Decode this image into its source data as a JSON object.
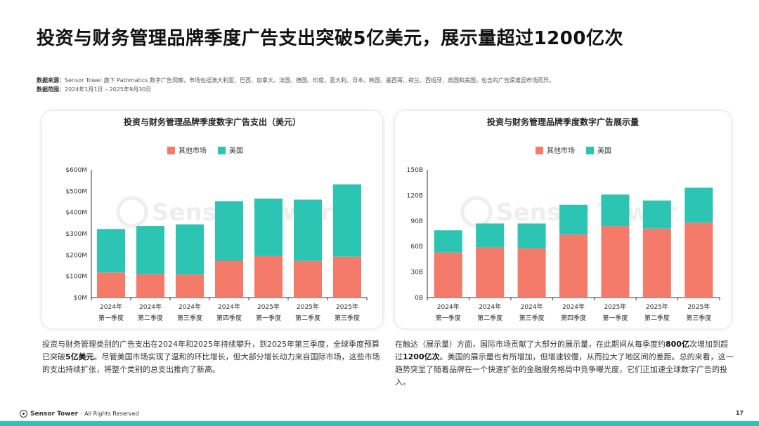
{
  "title": "投资与财务管理品牌季度广告支出突破5亿美元，展示量超过1200亿次",
  "source": {
    "label": "数据来源：",
    "text": "Sensor Tower 旗下 Pathmatics 数字广告洞察，市场包括澳大利亚、巴西、加拿大、法国、德国、印度、意大利、日本、韩国、墨西哥、荷兰、西班牙、英国和美国，包含的广告渠道因市场而异。",
    "range_label": "数据范围：",
    "range_text": "2024年1月1日 – 2025年9月30日"
  },
  "watermark": "Sensor Tower",
  "colors": {
    "other": "#f47a6a",
    "us": "#2cc5b4",
    "accent": "#2cc5b4"
  },
  "chart_data": [
    {
      "type": "bar",
      "stacked": true,
      "title": "投资与财务管理品牌季度数字广告支出（美元）",
      "categories": [
        [
          "2024年",
          "第一季度"
        ],
        [
          "2024年",
          "第二季度"
        ],
        [
          "2024年",
          "第三季度"
        ],
        [
          "2024年",
          "第四季度"
        ],
        [
          "2025年",
          "第一季度"
        ],
        [
          "2025年",
          "第二季度"
        ],
        [
          "2025年",
          "第三季度"
        ]
      ],
      "series": [
        {
          "name": "其他市场",
          "color": "#f47a6a",
          "values": [
            118,
            110,
            108,
            173,
            195,
            172,
            192
          ]
        },
        {
          "name": "美国",
          "color": "#2cc5b4",
          "values": [
            204,
            226,
            236,
            280,
            270,
            288,
            340
          ]
        }
      ],
      "ylim": [
        0,
        600
      ],
      "yticks": [
        0,
        100,
        200,
        300,
        400,
        500,
        600
      ],
      "ytick_labels": [
        "$0M",
        "$100M",
        "$200M",
        "$300M",
        "$400M",
        "$500M",
        "$600M"
      ],
      "legend_position": "top"
    },
    {
      "type": "bar",
      "stacked": true,
      "title": "投资与财务管理品牌季度数字广告展示量",
      "categories": [
        [
          "2024年",
          "第一季度"
        ],
        [
          "2024年",
          "第二季度"
        ],
        [
          "2024年",
          "第三季度"
        ],
        [
          "2024年",
          "第四季度"
        ],
        [
          "2025年",
          "第一季度"
        ],
        [
          "2025年",
          "第二季度"
        ],
        [
          "2025年",
          "第三季度"
        ]
      ],
      "series": [
        {
          "name": "其他市场",
          "color": "#f47a6a",
          "values": [
            53,
            59,
            58,
            74,
            84,
            81,
            88
          ]
        },
        {
          "name": "美国",
          "color": "#2cc5b4",
          "values": [
            26,
            28,
            29,
            35,
            37,
            33,
            41
          ]
        }
      ],
      "ylim": [
        0,
        150
      ],
      "yticks": [
        0,
        30,
        60,
        90,
        120,
        150
      ],
      "ytick_labels": [
        "0B",
        "30B",
        "60B",
        "90B",
        "120B",
        "150B"
      ],
      "legend_position": "top"
    }
  ],
  "para_left": {
    "p1": "投资与财务管理类别的广告支出在2024年和2025年持续攀升，到2025年第三季度，全球季度预算已突破",
    "b1": "5亿美元",
    "p2": "。尽管美国市场实现了温和的环比增长，但大部分增长动力来自国际市场，这些市场的支出持续扩张，将整个类别的总支出推向了新高。"
  },
  "para_right": {
    "p1": "在触达（展示量）方面，国际市场贡献了大部分的展示量，在此期间从每季度约",
    "b1": "800亿",
    "p2": "次增加到超过",
    "b2": "1200亿次",
    "p3": "。美国的展示量也有所增加，但增速较慢，从而拉大了地区间的差距。总的来看，这一趋势突显了随着品牌在一个快速扩张的金融服务格局中竞争曝光度，它们正加速全球数字广告的投入。"
  },
  "footer": {
    "brand": "Sensor Tower",
    "rights": "· All Rights Reserved",
    "page": "17"
  }
}
